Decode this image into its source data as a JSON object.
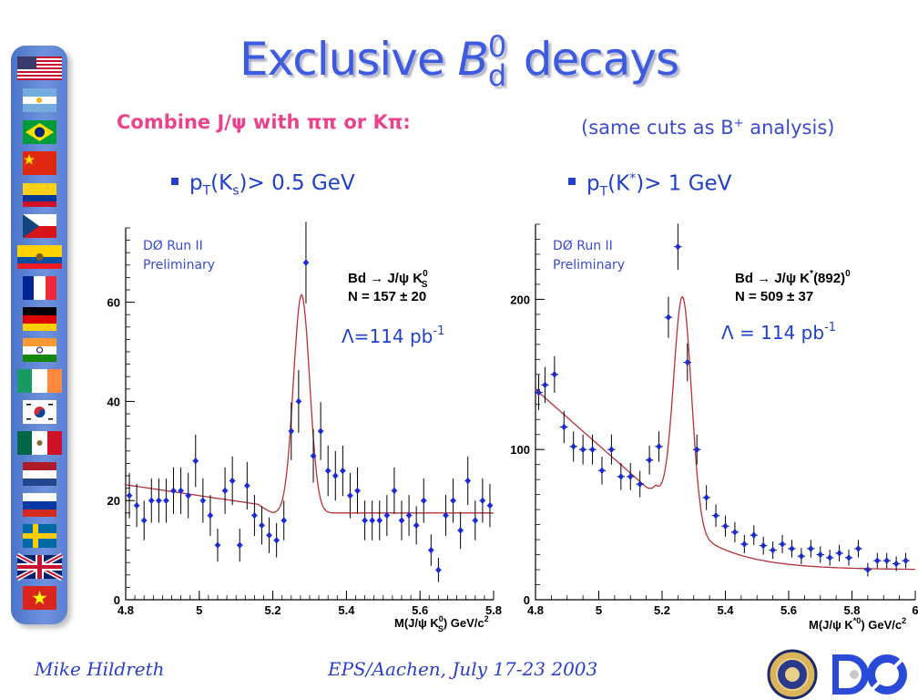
{
  "title": {
    "main": "Exclusive ",
    "b": "B",
    "sup": "0",
    "sub": "d",
    "rest": " decays"
  },
  "combine": "Combine J/ψ with ππ or Kπ:",
  "same_cuts": {
    "text": "(same cuts as B",
    "sup": "+",
    "end": " analysis)"
  },
  "bullets": {
    "left": {
      "a": "p",
      "sub1": "T",
      "b": "(K",
      "sub2": "s",
      "c": ")> 0.5 GeV"
    },
    "right": {
      "a": "p",
      "sub1": "T",
      "b": "(K",
      "sup2": "*",
      "c": ")> 1 GeV"
    }
  },
  "footer": {
    "author": "Mike Hildreth",
    "conference": "EPS/Aachen, July 17-23 2003"
  },
  "colors": {
    "title": "#3d5be0",
    "accent": "#e8438c",
    "points": "#1a2ad6",
    "fit": "#b8303a"
  },
  "chart_data": [
    {
      "type": "scatter",
      "run_label": [
        "DØ Run II",
        "Preliminary"
      ],
      "fit_label": {
        "line1": "Bd → J/ψ K",
        "line1_sup": "0",
        "line1_sub": "S",
        "line2": "N =  157 ± 20"
      },
      "lumi": {
        "text": "Λ=114 pb",
        "sup": "-1"
      },
      "xlabel": "M(J/ψ K  ) GeV/c",
      "xlabel_parts": {
        "a": "M(J/ψ K",
        "sup": "0",
        "sub": "S",
        "b": ") GeV/c",
        "sup2": "2"
      },
      "xlim": [
        4.8,
        5.8
      ],
      "ylim": [
        0,
        75
      ],
      "x_ticks": [
        "4.8",
        "5",
        "5.2",
        "5.4",
        "5.6",
        "5.8"
      ],
      "x_tick_values": [
        4.8,
        5.0,
        5.2,
        5.4,
        5.6,
        5.8
      ],
      "y_ticks": [
        "0",
        "20",
        "40",
        "60"
      ],
      "y_tick_values": [
        0,
        20,
        40,
        60
      ],
      "x": [
        4.81,
        4.83,
        4.85,
        4.87,
        4.89,
        4.91,
        4.93,
        4.95,
        4.97,
        4.99,
        5.01,
        5.03,
        5.05,
        5.07,
        5.09,
        5.11,
        5.13,
        5.15,
        5.17,
        5.19,
        5.21,
        5.23,
        5.25,
        5.27,
        5.29,
        5.31,
        5.33,
        5.35,
        5.37,
        5.39,
        5.41,
        5.43,
        5.45,
        5.47,
        5.49,
        5.51,
        5.53,
        5.55,
        5.57,
        5.59,
        5.61,
        5.63,
        5.65,
        5.67,
        5.69,
        5.71,
        5.73,
        5.75,
        5.77,
        5.79
      ],
      "y": [
        21,
        19,
        16,
        20,
        20,
        20,
        22,
        22,
        21,
        28,
        20,
        17,
        11,
        22,
        24,
        11,
        23,
        17,
        15,
        13,
        12,
        16,
        34,
        40,
        68,
        29,
        34,
        26,
        25,
        26,
        21,
        22,
        16,
        16,
        16,
        17,
        22,
        16,
        17,
        15,
        20,
        10,
        6,
        17,
        20,
        14,
        24,
        16,
        20,
        19
      ],
      "fit": {
        "baseline": 17.5,
        "low_level": 20.4,
        "low_slope": -11,
        "peak_amp": 44,
        "peak_mean": 5.278,
        "peak_sigma": 0.022
      }
    },
    {
      "type": "scatter",
      "run_label": [
        "DØ Run II",
        "Preliminary"
      ],
      "fit_label": {
        "line1": "Bd → J/ψ K",
        "line1_sup": "*",
        "line1_tail": "(892)",
        "line1_sup2": "0",
        "line2": "N =  509 ± 37"
      },
      "lumi": {
        "text": "Λ = 114 pb",
        "sup": "-1"
      },
      "xlabel": "M(J/ψ K  ) GeV/c",
      "xlabel_parts": {
        "a": "M(J/ψ K",
        "sup": "*0",
        "b": ") GeV/c",
        "sup2": "2"
      },
      "xlim": [
        4.8,
        6.0
      ],
      "ylim": [
        0,
        250
      ],
      "x_ticks": [
        "4.8",
        "5",
        "5.2",
        "5.4",
        "5.6",
        "5.8",
        "6"
      ],
      "x_tick_values": [
        4.8,
        5.0,
        5.2,
        5.4,
        5.6,
        5.8,
        6.0
      ],
      "y_ticks": [
        "0",
        "100",
        "200"
      ],
      "y_tick_values": [
        0,
        100,
        200
      ],
      "x": [
        4.81,
        4.83,
        4.86,
        4.89,
        4.92,
        4.95,
        4.98,
        5.01,
        5.04,
        5.07,
        5.1,
        5.13,
        5.16,
        5.19,
        5.22,
        5.25,
        5.28,
        5.31,
        5.34,
        5.37,
        5.4,
        5.43,
        5.46,
        5.49,
        5.52,
        5.55,
        5.58,
        5.61,
        5.64,
        5.67,
        5.7,
        5.73,
        5.76,
        5.79,
        5.82,
        5.85,
        5.88,
        5.91,
        5.94,
        5.97
      ],
      "y": [
        138,
        143,
        150,
        115,
        102,
        100,
        100,
        86,
        100,
        82,
        82,
        77,
        93,
        102,
        188,
        235,
        158,
        100,
        68,
        56,
        49,
        45,
        37,
        43,
        36,
        33,
        37,
        34,
        29,
        34,
        30,
        28,
        31,
        28,
        34,
        20,
        26,
        26,
        24,
        26
      ],
      "fit": {
        "A": 140,
        "slope": 0.55,
        "tail": 20,
        "tail_rate": 6.5,
        "peak_amp": 150,
        "peak_mean": 5.265,
        "peak_sigma": 0.028
      }
    }
  ]
}
